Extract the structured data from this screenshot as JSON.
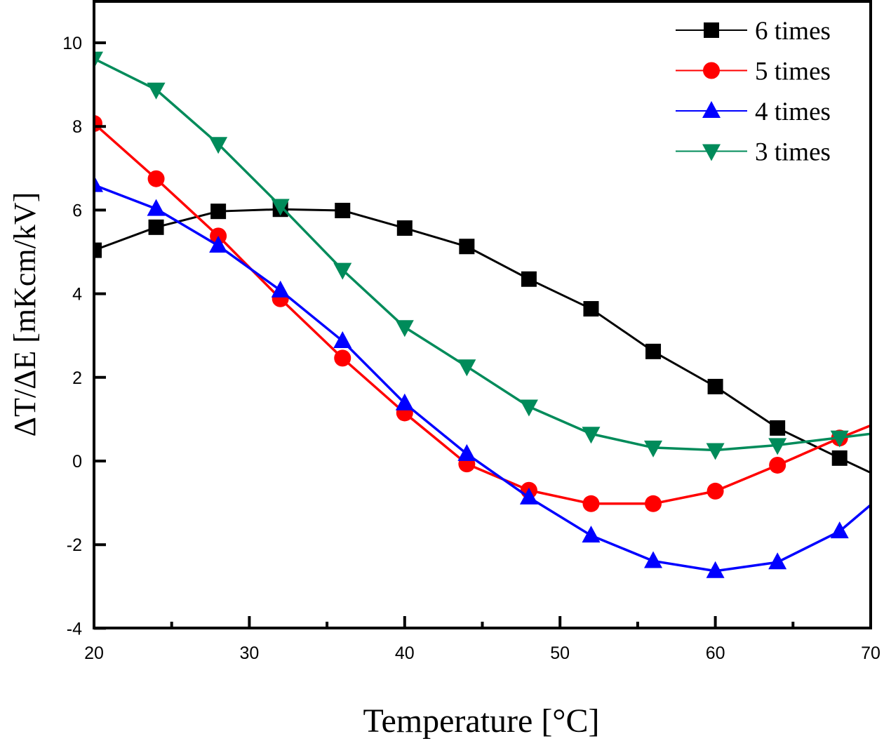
{
  "chart_data": {
    "type": "line",
    "title": "",
    "xlabel": "Temperature [°C]",
    "ylabel": "ΔT/ΔE  [mKcm/kV]",
    "xlim": [
      20,
      70
    ],
    "ylim": [
      -4,
      11
    ],
    "xticks": [
      20,
      30,
      40,
      50,
      60,
      70
    ],
    "xtick_labels": [
      "20",
      "30",
      "40",
      "50",
      "60",
      "70"
    ],
    "x_minor_ticks": [
      25,
      35,
      45,
      55,
      65
    ],
    "yticks": [
      -4,
      -2,
      0,
      2,
      4,
      6,
      8,
      10
    ],
    "ytick_labels": [
      "-4",
      "-2",
      "0",
      "2",
      "4",
      "6",
      "8",
      "10"
    ],
    "grid": false,
    "legend_position": "top-right",
    "x": [
      20,
      24,
      28,
      32,
      36,
      40,
      44,
      48,
      52,
      56,
      60,
      64,
      68
    ],
    "series": [
      {
        "name": "6 times",
        "color": "#000000",
        "marker": "square",
        "values": [
          5.04,
          5.59,
          5.97,
          6.02,
          5.99,
          5.57,
          5.13,
          4.35,
          3.64,
          2.62,
          1.78,
          0.79,
          0.07
        ],
        "line_end_at_x70": -0.28
      },
      {
        "name": "5 times",
        "color": "#ff0000",
        "marker": "circle",
        "values": [
          8.07,
          6.75,
          5.38,
          3.88,
          2.46,
          1.15,
          -0.07,
          -0.7,
          -1.02,
          -1.02,
          -0.72,
          -0.1,
          0.55
        ],
        "line_end_at_x70": 0.85
      },
      {
        "name": "4 times",
        "color": "#0000ff",
        "marker": "triangle-up",
        "values": [
          6.6,
          6.03,
          5.15,
          4.08,
          2.87,
          1.38,
          0.17,
          -0.87,
          -1.78,
          -2.39,
          -2.63,
          -2.42,
          -1.68
        ],
        "line_end_at_x70": -1.05
      },
      {
        "name": "3 times",
        "color": "#008b5a",
        "marker": "triangle-down",
        "values": [
          9.62,
          8.88,
          7.58,
          6.1,
          4.57,
          3.2,
          2.26,
          1.3,
          0.65,
          0.32,
          0.26,
          0.38,
          0.56
        ],
        "line_end_at_x70": 0.65
      }
    ]
  }
}
